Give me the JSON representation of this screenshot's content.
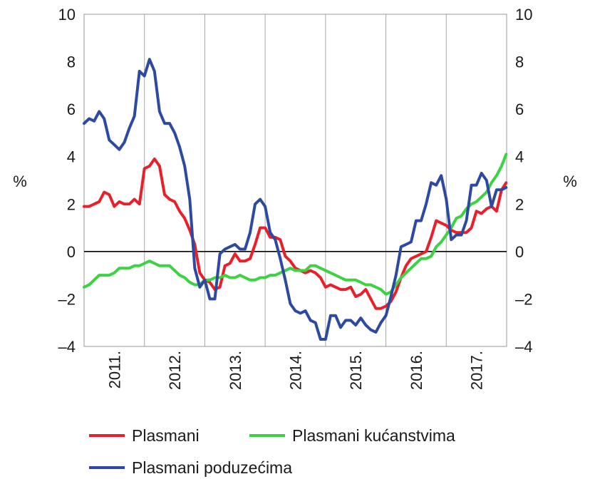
{
  "chart_data": {
    "type": "line",
    "title": "",
    "xlabel": "",
    "ylabel_left": "%",
    "ylabel_right": "%",
    "ylim": [
      -4,
      10
    ],
    "y_ticks": [
      "–4",
      "–2",
      "0",
      "2",
      "4",
      "6",
      "8",
      "10"
    ],
    "y_tick_values": [
      -4,
      -2,
      0,
      2,
      4,
      6,
      8,
      10
    ],
    "x_range": [
      "2011-01",
      "2017-12"
    ],
    "categories": [
      "2011.",
      "2012.",
      "2013.",
      "2014.",
      "2015.",
      "2016.",
      "2017."
    ],
    "grid": "vertical",
    "legend": "bottom",
    "series": [
      {
        "name": "Plasmani",
        "color": "#e8202a",
        "points": [
          [
            "2011-01",
            1.9
          ],
          [
            "2011-02",
            1.9
          ],
          [
            "2011-03",
            2.0
          ],
          [
            "2011-04",
            2.1
          ],
          [
            "2011-05",
            2.5
          ],
          [
            "2011-06",
            2.4
          ],
          [
            "2011-07",
            1.9
          ],
          [
            "2011-08",
            2.1
          ],
          [
            "2011-09",
            2.0
          ],
          [
            "2011-10",
            2.0
          ],
          [
            "2011-11",
            2.2
          ],
          [
            "2011-12",
            2.0
          ],
          [
            "2012-01",
            3.5
          ],
          [
            "2012-02",
            3.6
          ],
          [
            "2012-03",
            3.9
          ],
          [
            "2012-04",
            3.6
          ],
          [
            "2012-05",
            2.4
          ],
          [
            "2012-06",
            2.2
          ],
          [
            "2012-07",
            2.1
          ],
          [
            "2012-08",
            1.7
          ],
          [
            "2012-09",
            1.4
          ],
          [
            "2012-10",
            0.9
          ],
          [
            "2012-11",
            0.3
          ],
          [
            "2012-12",
            -0.9
          ],
          [
            "2013-01",
            -1.2
          ],
          [
            "2013-02",
            -1.3
          ],
          [
            "2013-03",
            -1.6
          ],
          [
            "2013-04",
            -1.5
          ],
          [
            "2013-05",
            -0.6
          ],
          [
            "2013-06",
            -0.5
          ],
          [
            "2013-07",
            -0.1
          ],
          [
            "2013-08",
            -0.4
          ],
          [
            "2013-09",
            -0.4
          ],
          [
            "2013-10",
            -0.3
          ],
          [
            "2013-11",
            0.3
          ],
          [
            "2013-12",
            1.0
          ],
          [
            "2014-01",
            1.0
          ],
          [
            "2014-02",
            0.6
          ],
          [
            "2014-03",
            0.6
          ],
          [
            "2014-04",
            0.5
          ],
          [
            "2014-05",
            -0.2
          ],
          [
            "2014-06",
            -0.4
          ],
          [
            "2014-07",
            -0.7
          ],
          [
            "2014-08",
            -0.8
          ],
          [
            "2014-09",
            -0.9
          ],
          [
            "2014-10",
            -0.8
          ],
          [
            "2014-11",
            -0.9
          ],
          [
            "2014-12",
            -1.1
          ],
          [
            "2015-01",
            -1.5
          ],
          [
            "2015-02",
            -1.4
          ],
          [
            "2015-03",
            -1.5
          ],
          [
            "2015-04",
            -1.6
          ],
          [
            "2015-05",
            -1.6
          ],
          [
            "2015-06",
            -1.5
          ],
          [
            "2015-07",
            -1.9
          ],
          [
            "2015-08",
            -1.8
          ],
          [
            "2015-09",
            -1.6
          ],
          [
            "2015-10",
            -2.0
          ],
          [
            "2015-11",
            -2.4
          ],
          [
            "2015-12",
            -2.4
          ],
          [
            "2016-01",
            -2.3
          ],
          [
            "2016-02",
            -2.1
          ],
          [
            "2016-03",
            -1.7
          ],
          [
            "2016-04",
            -1.1
          ],
          [
            "2016-05",
            -0.6
          ],
          [
            "2016-06",
            -0.3
          ],
          [
            "2016-07",
            -0.2
          ],
          [
            "2016-08",
            -0.1
          ],
          [
            "2016-09",
            0.0
          ],
          [
            "2016-10",
            0.6
          ],
          [
            "2016-11",
            1.3
          ],
          [
            "2016-12",
            1.2
          ],
          [
            "2017-01",
            1.1
          ],
          [
            "2017-02",
            0.9
          ],
          [
            "2017-03",
            0.8
          ],
          [
            "2017-04",
            0.8
          ],
          [
            "2017-05",
            0.8
          ],
          [
            "2017-06",
            1.0
          ],
          [
            "2017-07",
            1.7
          ],
          [
            "2017-08",
            1.6
          ],
          [
            "2017-09",
            1.8
          ],
          [
            "2017-10",
            1.9
          ],
          [
            "2017-11",
            1.7
          ],
          [
            "2017-12",
            2.6
          ],
          [
            "2017-12.9",
            2.9
          ]
        ]
      },
      {
        "name": "Plasmani kućanstvima",
        "color": "#3cd244",
        "points": [
          [
            "2011-01",
            -1.5
          ],
          [
            "2011-02",
            -1.4
          ],
          [
            "2011-03",
            -1.2
          ],
          [
            "2011-04",
            -1.0
          ],
          [
            "2011-05",
            -1.0
          ],
          [
            "2011-06",
            -1.0
          ],
          [
            "2011-07",
            -0.9
          ],
          [
            "2011-08",
            -0.7
          ],
          [
            "2011-09",
            -0.7
          ],
          [
            "2011-10",
            -0.7
          ],
          [
            "2011-11",
            -0.6
          ],
          [
            "2011-12",
            -0.6
          ],
          [
            "2012-01",
            -0.5
          ],
          [
            "2012-02",
            -0.4
          ],
          [
            "2012-03",
            -0.5
          ],
          [
            "2012-04",
            -0.6
          ],
          [
            "2012-05",
            -0.6
          ],
          [
            "2012-06",
            -0.6
          ],
          [
            "2012-07",
            -0.8
          ],
          [
            "2012-08",
            -1.0
          ],
          [
            "2012-09",
            -1.1
          ],
          [
            "2012-10",
            -1.3
          ],
          [
            "2012-11",
            -1.4
          ],
          [
            "2012-12",
            -1.4
          ],
          [
            "2013-01",
            -1.2
          ],
          [
            "2013-02",
            -1.2
          ],
          [
            "2013-03",
            -1.1
          ],
          [
            "2013-04",
            -1.1
          ],
          [
            "2013-05",
            -1.0
          ],
          [
            "2013-06",
            -1.1
          ],
          [
            "2013-07",
            -1.1
          ],
          [
            "2013-08",
            -1.0
          ],
          [
            "2013-09",
            -1.1
          ],
          [
            "2013-10",
            -1.2
          ],
          [
            "2013-11",
            -1.2
          ],
          [
            "2013-12",
            -1.1
          ],
          [
            "2014-01",
            -1.1
          ],
          [
            "2014-02",
            -1.0
          ],
          [
            "2014-03",
            -1.0
          ],
          [
            "2014-04",
            -0.9
          ],
          [
            "2014-05",
            -0.8
          ],
          [
            "2014-06",
            -0.7
          ],
          [
            "2014-07",
            -0.8
          ],
          [
            "2014-08",
            -0.8
          ],
          [
            "2014-09",
            -0.8
          ],
          [
            "2014-10",
            -0.6
          ],
          [
            "2014-11",
            -0.6
          ],
          [
            "2014-12",
            -0.7
          ],
          [
            "2015-01",
            -0.8
          ],
          [
            "2015-02",
            -0.9
          ],
          [
            "2015-03",
            -1.0
          ],
          [
            "2015-04",
            -1.1
          ],
          [
            "2015-05",
            -1.2
          ],
          [
            "2015-06",
            -1.2
          ],
          [
            "2015-07",
            -1.2
          ],
          [
            "2015-08",
            -1.3
          ],
          [
            "2015-09",
            -1.4
          ],
          [
            "2015-10",
            -1.4
          ],
          [
            "2015-11",
            -1.5
          ],
          [
            "2015-12",
            -1.6
          ],
          [
            "2016-01",
            -1.8
          ],
          [
            "2016-02",
            -1.7
          ],
          [
            "2016-03",
            -1.4
          ],
          [
            "2016-04",
            -1.1
          ],
          [
            "2016-05",
            -0.9
          ],
          [
            "2016-06",
            -0.7
          ],
          [
            "2016-07",
            -0.5
          ],
          [
            "2016-08",
            -0.3
          ],
          [
            "2016-09",
            -0.3
          ],
          [
            "2016-10",
            -0.2
          ],
          [
            "2016-11",
            0.2
          ],
          [
            "2016-12",
            0.4
          ],
          [
            "2017-01",
            0.7
          ],
          [
            "2017-02",
            1.0
          ],
          [
            "2017-03",
            1.4
          ],
          [
            "2017-04",
            1.5
          ],
          [
            "2017-05",
            1.8
          ],
          [
            "2017-06",
            2.0
          ],
          [
            "2017-07",
            2.1
          ],
          [
            "2017-08",
            2.3
          ],
          [
            "2017-09",
            2.5
          ],
          [
            "2017-10",
            2.9
          ],
          [
            "2017-11",
            3.2
          ],
          [
            "2017-12",
            3.6
          ],
          [
            "2017-12.9",
            4.1
          ]
        ]
      },
      {
        "name": "Plasmani poduzećima",
        "color": "#2d4aa0",
        "points": [
          [
            "2011-01",
            5.4
          ],
          [
            "2011-02",
            5.6
          ],
          [
            "2011-03",
            5.5
          ],
          [
            "2011-04",
            5.9
          ],
          [
            "2011-05",
            5.6
          ],
          [
            "2011-06",
            4.7
          ],
          [
            "2011-07",
            4.5
          ],
          [
            "2011-08",
            4.3
          ],
          [
            "2011-09",
            4.6
          ],
          [
            "2011-10",
            5.2
          ],
          [
            "2011-11",
            5.7
          ],
          [
            "2011-12",
            7.6
          ],
          [
            "2012-01",
            7.4
          ],
          [
            "2012-02",
            8.1
          ],
          [
            "2012-03",
            7.6
          ],
          [
            "2012-04",
            5.9
          ],
          [
            "2012-05",
            5.4
          ],
          [
            "2012-06",
            5.4
          ],
          [
            "2012-07",
            5.0
          ],
          [
            "2012-08",
            4.4
          ],
          [
            "2012-09",
            3.6
          ],
          [
            "2012-10",
            2.2
          ],
          [
            "2012-11",
            -0.7
          ],
          [
            "2012-12",
            -1.5
          ],
          [
            "2013-01",
            -1.2
          ],
          [
            "2013-02",
            -2.0
          ],
          [
            "2013-03",
            -2.0
          ],
          [
            "2013-04",
            -0.1
          ],
          [
            "2013-05",
            0.1
          ],
          [
            "2013-06",
            0.2
          ],
          [
            "2013-07",
            0.3
          ],
          [
            "2013-08",
            0.1
          ],
          [
            "2013-09",
            0.1
          ],
          [
            "2013-10",
            0.8
          ],
          [
            "2013-11",
            2.0
          ],
          [
            "2013-12",
            2.2
          ],
          [
            "2014-01",
            1.9
          ],
          [
            "2014-02",
            0.8
          ],
          [
            "2014-03",
            0.5
          ],
          [
            "2014-04",
            -0.3
          ],
          [
            "2014-05",
            -1.2
          ],
          [
            "2014-06",
            -2.2
          ],
          [
            "2014-07",
            -2.5
          ],
          [
            "2014-08",
            -2.6
          ],
          [
            "2014-09",
            -2.5
          ],
          [
            "2014-10",
            -2.9
          ],
          [
            "2014-11",
            -3.0
          ],
          [
            "2014-12",
            -3.7
          ],
          [
            "2015-01",
            -3.7
          ],
          [
            "2015-02",
            -2.7
          ],
          [
            "2015-03",
            -2.7
          ],
          [
            "2015-04",
            -3.2
          ],
          [
            "2015-05",
            -2.9
          ],
          [
            "2015-06",
            -2.9
          ],
          [
            "2015-07",
            -3.1
          ],
          [
            "2015-08",
            -2.8
          ],
          [
            "2015-09",
            -3.1
          ],
          [
            "2015-10",
            -3.3
          ],
          [
            "2015-11",
            -3.4
          ],
          [
            "2015-12",
            -3.0
          ],
          [
            "2016-01",
            -2.7
          ],
          [
            "2016-02",
            -1.9
          ],
          [
            "2016-03",
            -1.0
          ],
          [
            "2016-04",
            0.2
          ],
          [
            "2016-05",
            0.3
          ],
          [
            "2016-06",
            0.4
          ],
          [
            "2016-07",
            1.3
          ],
          [
            "2016-08",
            1.3
          ],
          [
            "2016-09",
            2.0
          ],
          [
            "2016-10",
            2.9
          ],
          [
            "2016-11",
            2.8
          ],
          [
            "2016-12",
            3.2
          ],
          [
            "2017-01",
            2.2
          ],
          [
            "2017-02",
            0.5
          ],
          [
            "2017-03",
            0.7
          ],
          [
            "2017-04",
            0.7
          ],
          [
            "2017-05",
            1.3
          ],
          [
            "2017-06",
            2.8
          ],
          [
            "2017-07",
            2.8
          ],
          [
            "2017-08",
            3.3
          ],
          [
            "2017-09",
            3.0
          ],
          [
            "2017-10",
            1.9
          ],
          [
            "2017-11",
            2.6
          ],
          [
            "2017-12",
            2.6
          ],
          [
            "2017-12.9",
            2.7
          ]
        ]
      }
    ]
  }
}
